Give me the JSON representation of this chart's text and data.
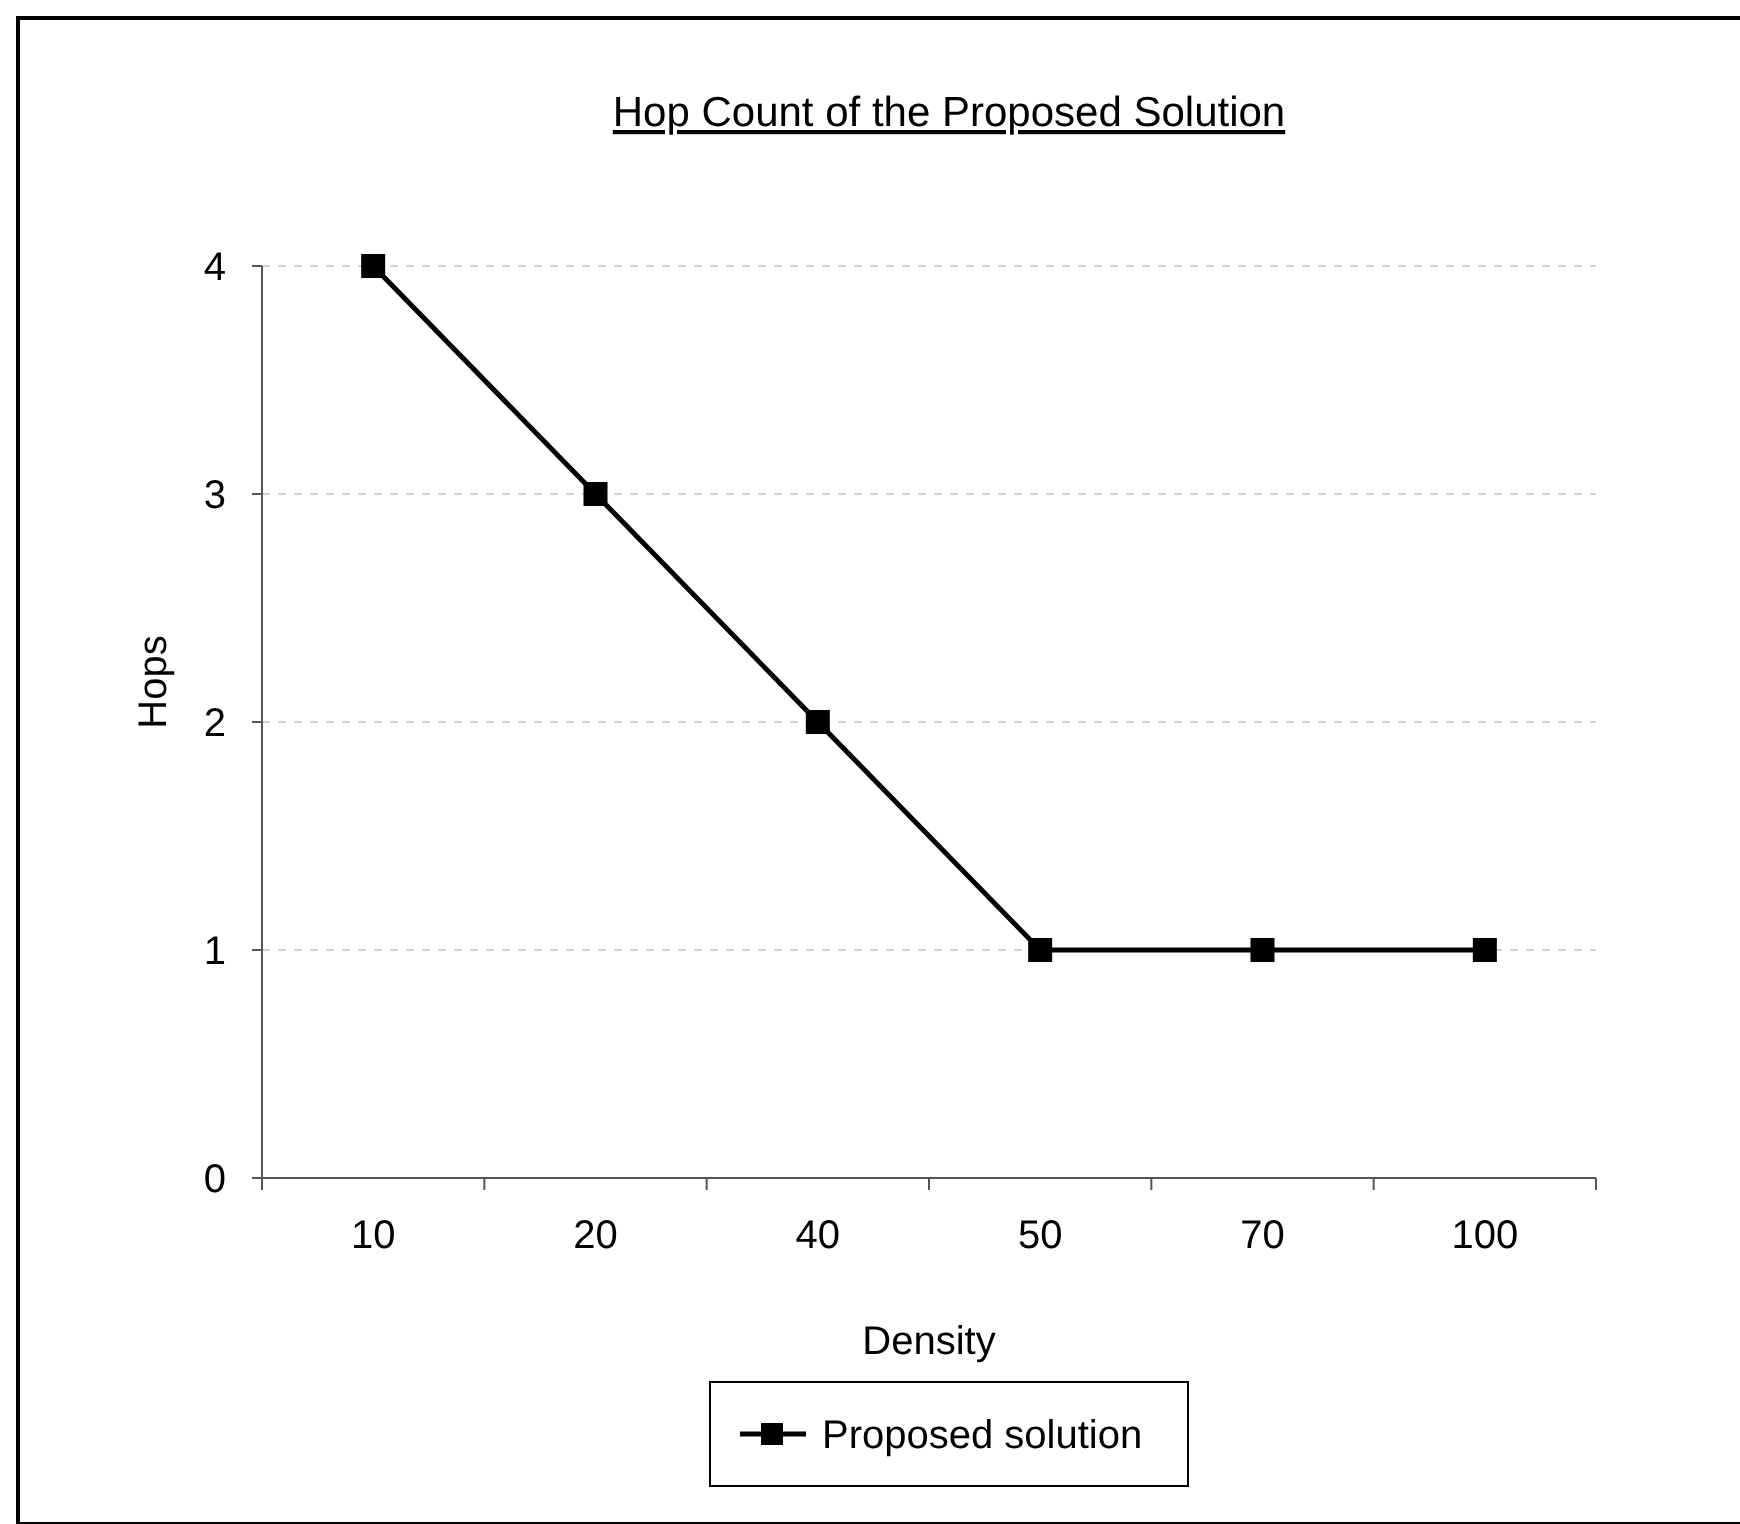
{
  "chart_data": {
    "type": "line",
    "title": "Hop Count of the Proposed Solution",
    "xlabel": "Density",
    "ylabel": "Hops",
    "categories": [
      "10",
      "20",
      "40",
      "50",
      "70",
      "100"
    ],
    "series": [
      {
        "name": "Proposed solution",
        "color": "#000000",
        "values": [
          4,
          3,
          2,
          1,
          1,
          1
        ]
      }
    ],
    "ylim": [
      0,
      4
    ],
    "yticks": [
      0,
      1,
      2,
      3,
      4
    ],
    "grid": "y",
    "legend": "bottom",
    "marker": "square",
    "line_style": "solid"
  }
}
